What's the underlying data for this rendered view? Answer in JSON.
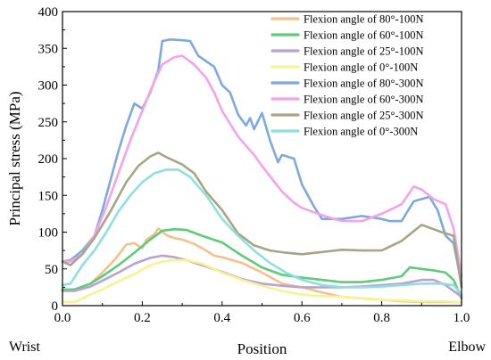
{
  "chart_data": {
    "type": "line",
    "xlabel": "Position",
    "ylabel": "Principal stress (MPa)",
    "xlim": [
      0,
      1
    ],
    "ylim": [
      0,
      400
    ],
    "xticks": [
      0.0,
      0.2,
      0.4,
      0.6,
      0.8,
      1.0
    ],
    "xtick_labels": [
      "0.0",
      "0.2",
      "0.4",
      "0.6",
      "0.8",
      "1.0"
    ],
    "yticks": [
      0,
      50,
      100,
      150,
      200,
      250,
      300,
      350,
      400
    ],
    "ytick_labels": [
      "0",
      "50",
      "100",
      "150",
      "200",
      "250",
      "300",
      "350",
      "400"
    ],
    "x_end_labels": {
      "left": "Wrist",
      "right": "Elbow"
    },
    "grid": false,
    "legend_placement": "top-right",
    "series": [
      {
        "name": "Flexion angle of 80°-100N",
        "color": "#f5bf8f",
        "points": [
          [
            0,
            22
          ],
          [
            0.03,
            22
          ],
          [
            0.07,
            30
          ],
          [
            0.1,
            45
          ],
          [
            0.13,
            62
          ],
          [
            0.16,
            83
          ],
          [
            0.18,
            85
          ],
          [
            0.2,
            78
          ],
          [
            0.21,
            90
          ],
          [
            0.23,
            97
          ],
          [
            0.24,
            105
          ],
          [
            0.26,
            96
          ],
          [
            0.28,
            92
          ],
          [
            0.3,
            90
          ],
          [
            0.33,
            84
          ],
          [
            0.36,
            75
          ],
          [
            0.38,
            68
          ],
          [
            0.4,
            66
          ],
          [
            0.45,
            58
          ],
          [
            0.5,
            45
          ],
          [
            0.55,
            30
          ],
          [
            0.6,
            25
          ],
          [
            0.65,
            18
          ],
          [
            0.7,
            12
          ],
          [
            0.75,
            10
          ],
          [
            0.8,
            8
          ],
          [
            0.85,
            6
          ],
          [
            0.9,
            5
          ],
          [
            0.95,
            5
          ],
          [
            1.0,
            5
          ]
        ]
      },
      {
        "name": "Flexion angle of 60°-100N",
        "color": "#5ccc78",
        "points": [
          [
            0,
            22
          ],
          [
            0.03,
            22
          ],
          [
            0.07,
            30
          ],
          [
            0.1,
            40
          ],
          [
            0.14,
            55
          ],
          [
            0.18,
            72
          ],
          [
            0.22,
            90
          ],
          [
            0.25,
            102
          ],
          [
            0.28,
            104
          ],
          [
            0.31,
            103
          ],
          [
            0.35,
            95
          ],
          [
            0.4,
            86
          ],
          [
            0.45,
            68
          ],
          [
            0.5,
            52
          ],
          [
            0.55,
            42
          ],
          [
            0.6,
            38
          ],
          [
            0.65,
            35
          ],
          [
            0.7,
            32
          ],
          [
            0.75,
            32
          ],
          [
            0.8,
            35
          ],
          [
            0.85,
            40
          ],
          [
            0.87,
            52
          ],
          [
            0.9,
            50
          ],
          [
            0.93,
            48
          ],
          [
            0.96,
            45
          ],
          [
            0.98,
            35
          ],
          [
            1.0,
            10
          ]
        ]
      },
      {
        "name": "Flexion angle of 25°-100N",
        "color": "#b8a2d4",
        "points": [
          [
            0,
            20
          ],
          [
            0.03,
            20
          ],
          [
            0.07,
            26
          ],
          [
            0.1,
            34
          ],
          [
            0.14,
            45
          ],
          [
            0.18,
            57
          ],
          [
            0.22,
            65
          ],
          [
            0.25,
            68
          ],
          [
            0.28,
            66
          ],
          [
            0.31,
            62
          ],
          [
            0.35,
            55
          ],
          [
            0.4,
            46
          ],
          [
            0.45,
            36
          ],
          [
            0.5,
            30
          ],
          [
            0.55,
            27
          ],
          [
            0.6,
            25
          ],
          [
            0.65,
            25
          ],
          [
            0.7,
            25
          ],
          [
            0.75,
            26
          ],
          [
            0.8,
            28
          ],
          [
            0.85,
            30
          ],
          [
            0.9,
            35
          ],
          [
            0.93,
            35
          ],
          [
            0.96,
            28
          ],
          [
            1.0,
            12
          ]
        ]
      },
      {
        "name": "Flexion angle of 0°-100N",
        "color": "#f6f390",
        "points": [
          [
            0,
            5
          ],
          [
            0.03,
            5
          ],
          [
            0.07,
            15
          ],
          [
            0.1,
            22
          ],
          [
            0.14,
            33
          ],
          [
            0.18,
            43
          ],
          [
            0.22,
            55
          ],
          [
            0.25,
            60
          ],
          [
            0.28,
            62
          ],
          [
            0.31,
            62
          ],
          [
            0.35,
            57
          ],
          [
            0.4,
            45
          ],
          [
            0.45,
            35
          ],
          [
            0.5,
            27
          ],
          [
            0.55,
            20
          ],
          [
            0.6,
            15
          ],
          [
            0.65,
            13
          ],
          [
            0.7,
            12
          ],
          [
            0.75,
            10
          ],
          [
            0.8,
            8
          ],
          [
            0.85,
            7
          ],
          [
            0.9,
            6
          ],
          [
            0.95,
            6
          ],
          [
            1.0,
            5
          ]
        ]
      },
      {
        "name": "Flexion angle of 80°-300N",
        "color": "#7ea9df",
        "points": [
          [
            0,
            60
          ],
          [
            0.02,
            62
          ],
          [
            0.05,
            75
          ],
          [
            0.08,
            95
          ],
          [
            0.1,
            130
          ],
          [
            0.12,
            170
          ],
          [
            0.14,
            210
          ],
          [
            0.16,
            245
          ],
          [
            0.18,
            275
          ],
          [
            0.2,
            268
          ],
          [
            0.22,
            290
          ],
          [
            0.24,
            320
          ],
          [
            0.25,
            360
          ],
          [
            0.27,
            362
          ],
          [
            0.3,
            361
          ],
          [
            0.32,
            360
          ],
          [
            0.34,
            340
          ],
          [
            0.38,
            325
          ],
          [
            0.4,
            300
          ],
          [
            0.42,
            290
          ],
          [
            0.44,
            260
          ],
          [
            0.46,
            245
          ],
          [
            0.47,
            255
          ],
          [
            0.48,
            240
          ],
          [
            0.5,
            262
          ],
          [
            0.52,
            225
          ],
          [
            0.54,
            195
          ],
          [
            0.55,
            205
          ],
          [
            0.58,
            200
          ],
          [
            0.6,
            165
          ],
          [
            0.63,
            135
          ],
          [
            0.65,
            118
          ],
          [
            0.7,
            118
          ],
          [
            0.75,
            122
          ],
          [
            0.8,
            118
          ],
          [
            0.82,
            115
          ],
          [
            0.85,
            115
          ],
          [
            0.88,
            142
          ],
          [
            0.92,
            148
          ],
          [
            0.94,
            130
          ],
          [
            0.96,
            95
          ],
          [
            0.98,
            85
          ],
          [
            1.0,
            30
          ]
        ]
      },
      {
        "name": "Flexion angle of 60°-300N",
        "color": "#f2a3ea",
        "points": [
          [
            0,
            60
          ],
          [
            0.02,
            60
          ],
          [
            0.05,
            70
          ],
          [
            0.08,
            95
          ],
          [
            0.11,
            135
          ],
          [
            0.14,
            180
          ],
          [
            0.17,
            225
          ],
          [
            0.2,
            265
          ],
          [
            0.23,
            305
          ],
          [
            0.25,
            328
          ],
          [
            0.28,
            338
          ],
          [
            0.3,
            340
          ],
          [
            0.33,
            328
          ],
          [
            0.36,
            310
          ],
          [
            0.38,
            290
          ],
          [
            0.4,
            265
          ],
          [
            0.44,
            230
          ],
          [
            0.48,
            205
          ],
          [
            0.5,
            190
          ],
          [
            0.55,
            155
          ],
          [
            0.58,
            140
          ],
          [
            0.6,
            133
          ],
          [
            0.65,
            123
          ],
          [
            0.7,
            115
          ],
          [
            0.75,
            115
          ],
          [
            0.8,
            125
          ],
          [
            0.85,
            138
          ],
          [
            0.88,
            162
          ],
          [
            0.9,
            158
          ],
          [
            0.93,
            145
          ],
          [
            0.96,
            138
          ],
          [
            0.98,
            105
          ],
          [
            1.0,
            40
          ]
        ]
      },
      {
        "name": "Flexion angle of 25°-300N",
        "color": "#a8a585",
        "points": [
          [
            0,
            60
          ],
          [
            0.02,
            55
          ],
          [
            0.05,
            70
          ],
          [
            0.08,
            92
          ],
          [
            0.12,
            128
          ],
          [
            0.16,
            168
          ],
          [
            0.19,
            190
          ],
          [
            0.22,
            203
          ],
          [
            0.24,
            208
          ],
          [
            0.26,
            202
          ],
          [
            0.3,
            192
          ],
          [
            0.33,
            180
          ],
          [
            0.36,
            155
          ],
          [
            0.4,
            130
          ],
          [
            0.44,
            98
          ],
          [
            0.48,
            82
          ],
          [
            0.52,
            75
          ],
          [
            0.56,
            72
          ],
          [
            0.6,
            70
          ],
          [
            0.65,
            73
          ],
          [
            0.7,
            76
          ],
          [
            0.75,
            75
          ],
          [
            0.8,
            75
          ],
          [
            0.85,
            88
          ],
          [
            0.9,
            110
          ],
          [
            0.95,
            100
          ],
          [
            0.98,
            95
          ],
          [
            1.0,
            25
          ]
        ]
      },
      {
        "name": "Flexion angle of 0°-300N",
        "color": "#8fdfdf",
        "points": [
          [
            0,
            28
          ],
          [
            0.02,
            30
          ],
          [
            0.05,
            55
          ],
          [
            0.08,
            75
          ],
          [
            0.11,
            100
          ],
          [
            0.14,
            128
          ],
          [
            0.17,
            150
          ],
          [
            0.2,
            168
          ],
          [
            0.23,
            180
          ],
          [
            0.26,
            185
          ],
          [
            0.29,
            185
          ],
          [
            0.32,
            175
          ],
          [
            0.36,
            150
          ],
          [
            0.4,
            118
          ],
          [
            0.44,
            95
          ],
          [
            0.48,
            75
          ],
          [
            0.52,
            58
          ],
          [
            0.56,
            45
          ],
          [
            0.6,
            35
          ],
          [
            0.65,
            28
          ],
          [
            0.7,
            25
          ],
          [
            0.75,
            25
          ],
          [
            0.8,
            26
          ],
          [
            0.85,
            28
          ],
          [
            0.9,
            30
          ],
          [
            0.95,
            30
          ],
          [
            0.98,
            28
          ],
          [
            1.0,
            15
          ]
        ]
      }
    ]
  }
}
